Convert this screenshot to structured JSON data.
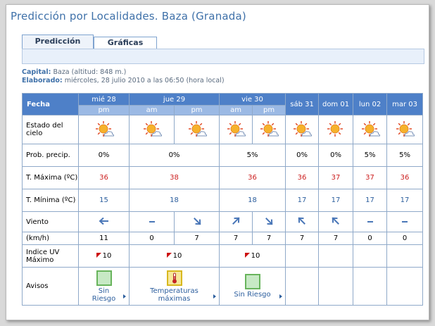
{
  "title": "Predicción por Localidades. Baza (Granada)",
  "tabs": [
    {
      "label": "Predicción",
      "active": true
    },
    {
      "label": "Gráficas",
      "active": false
    }
  ],
  "info": {
    "capital_label": "Capital:",
    "capital_value": "Baza (altitud: 848 m.)",
    "elaborado_label": "Elaborado:",
    "elaborado_value": "miércoles, 28 julio 2010 a las 06:50 (hora local)"
  },
  "table": {
    "fecha_label": "Fecha",
    "days": [
      "mié 28",
      "jue 29",
      "vie 30",
      "sáb 31",
      "dom 01",
      "lun 02",
      "mar 03"
    ],
    "periods": [
      "pm",
      "am",
      "pm",
      "am",
      "pm"
    ],
    "rows": {
      "estado_label": "Estado del cielo",
      "prob_label": "Prob. precip.",
      "prob": [
        "0%",
        "0%",
        "5%",
        "0%",
        "0%",
        "5%",
        "5%"
      ],
      "tmax_label": "T. Máxima (ºC)",
      "tmax": [
        "36",
        "38",
        "36",
        "36",
        "37",
        "37",
        "36"
      ],
      "tmin_label": "T. Mínima (ºC)",
      "tmin": [
        "15",
        "18",
        "18",
        "17",
        "17",
        "17",
        "17"
      ],
      "viento_label": "Viento",
      "kmh_label": "(km/h)",
      "kmh": [
        "11",
        "0",
        "7",
        "7",
        "7",
        "7",
        "7",
        "0",
        "0"
      ],
      "uv_label": "Indice UV Máximo",
      "uv": [
        "10",
        "10",
        "10"
      ],
      "avisos_label": "Avisos",
      "avisos": [
        "Sin Riesgo",
        "Temperaturas máximas",
        "Sin Riesgo"
      ]
    }
  },
  "colors": {
    "header_blue": "#4e80c8",
    "sub_blue": "#9bb9e4",
    "tmax_red": "#cc1e1e",
    "tmin_blue": "#2d5f9e"
  },
  "icons": {
    "sky": "sun-with-cloud-icon",
    "wind": [
      "arrow-west-icon",
      "calm-dash-icon",
      "arrow-southeast-icon",
      "arrow-northeast-icon",
      "arrow-southeast-icon",
      "arrow-northwest-icon",
      "arrow-northwest-icon",
      "calm-dash-icon",
      "calm-dash-icon"
    ]
  }
}
